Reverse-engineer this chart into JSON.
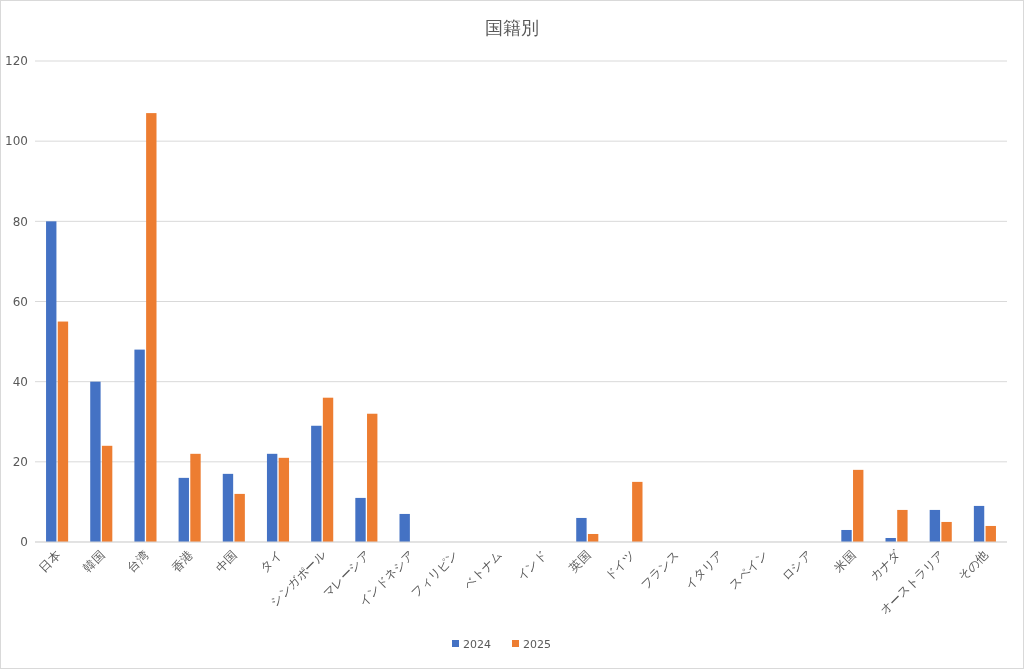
{
  "chart_data": {
    "type": "bar",
    "title": "国籍別",
    "categories": [
      "日本",
      "韓国",
      "台湾",
      "香港",
      "中国",
      "タイ",
      "シンガポール",
      "マレーシア",
      "インドネシア",
      "フィリピン",
      "ベトナム",
      "インド",
      "英国",
      "ドイツ",
      "フランス",
      "イタリア",
      "スペイン",
      "ロシア",
      "米国",
      "カナダ",
      "オーストラリア",
      "その他"
    ],
    "series": [
      {
        "name": "2024",
        "color": "#4472c4",
        "values": [
          80,
          40,
          48,
          16,
          17,
          22,
          29,
          11,
          7,
          null,
          null,
          null,
          6,
          null,
          null,
          null,
          null,
          null,
          3,
          1,
          8,
          9
        ]
      },
      {
        "name": "2025",
        "color": "#ed7d31",
        "values": [
          55,
          24,
          107,
          22,
          12,
          21,
          36,
          32,
          null,
          null,
          null,
          null,
          2,
          15,
          null,
          null,
          null,
          null,
          18,
          8,
          5,
          4
        ]
      }
    ],
    "ylim": [
      0,
      120
    ],
    "yticks": [
      0,
      20,
      40,
      60,
      80,
      100,
      120
    ],
    "grid": "y",
    "legend": "bottom"
  }
}
